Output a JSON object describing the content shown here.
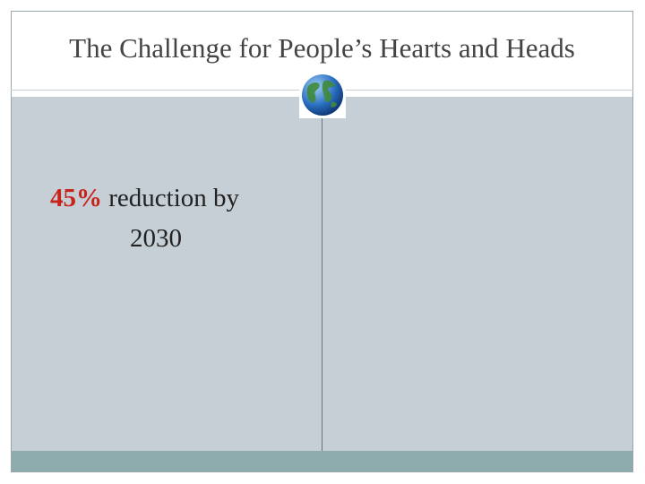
{
  "header": {
    "title": "The Challenge for People’s Hearts and Heads"
  },
  "body": {
    "highlight": "45%",
    "text_line1": "reduction by",
    "text_line2": "2030"
  }
}
